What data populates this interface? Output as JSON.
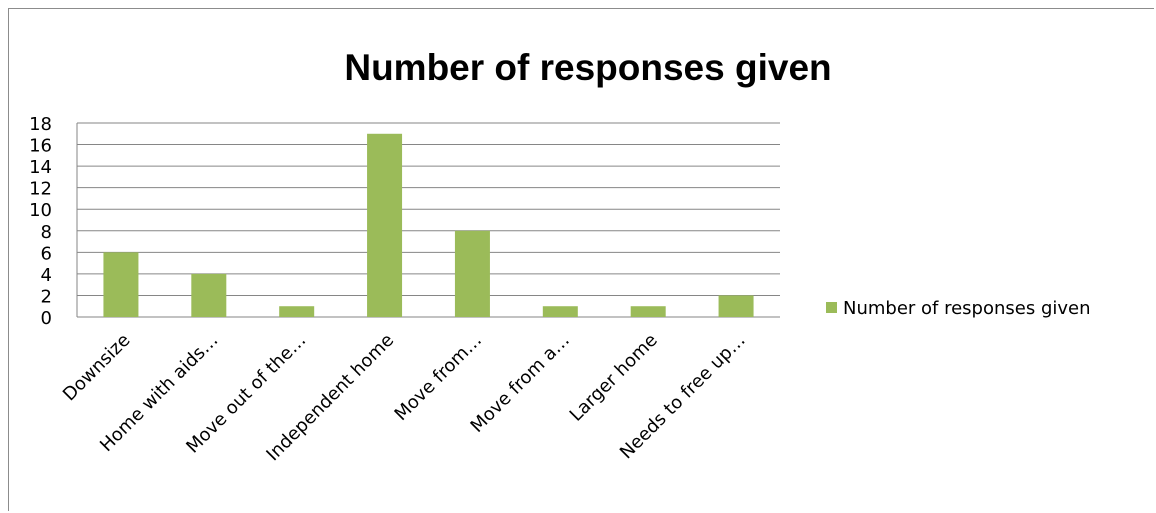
{
  "chart_data": {
    "type": "bar",
    "title": "Number of responses given",
    "categories": [
      "Downsize",
      "Home with aids…",
      "Move out of the…",
      "Independent home",
      "Move from…",
      "Move from a…",
      "Larger home",
      "Needs to free up…"
    ],
    "series": [
      {
        "name": "Number of responses given",
        "values": [
          6,
          4,
          1,
          17,
          8,
          1,
          1,
          2
        ]
      }
    ],
    "ylim": [
      0,
      18
    ],
    "yticks": [
      0,
      2,
      4,
      6,
      8,
      10,
      12,
      14,
      16,
      18
    ],
    "grid": true,
    "legend": "right",
    "bar_color": "#9bbb59",
    "grid_color": "#868686"
  }
}
